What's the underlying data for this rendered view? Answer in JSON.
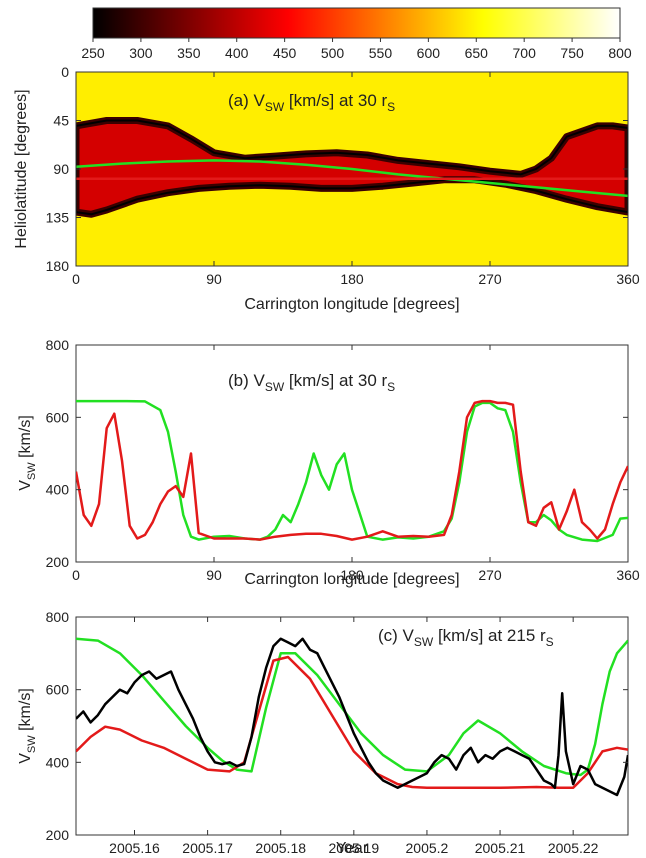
{
  "colorbar": {
    "ticks": [
      "250",
      "300",
      "350",
      "400",
      "450",
      "500",
      "550",
      "600",
      "650",
      "700",
      "750",
      "800"
    ],
    "range": [
      250,
      800
    ],
    "colormap": "hot"
  },
  "colors": {
    "green": "#22e022",
    "red": "#e31a1a",
    "black": "#000000",
    "field_yellow": "#ffee00"
  },
  "chart_data": [
    {
      "type": "heatmap",
      "title_pre": "(a) V",
      "title_sub": "SW",
      "title_mid": " [km/s] at 30 r",
      "title_sub2": "S",
      "xlabel": "Carrington longitude [degrees]",
      "ylabel": "Heliolatitude [degrees]",
      "xlim": [
        0,
        360
      ],
      "ylim": [
        0,
        180
      ],
      "xticks": [
        0,
        90,
        180,
        270,
        360
      ],
      "yticks": [
        0,
        45,
        90,
        135,
        180
      ],
      "y_reversed": true,
      "description_values": {
        "field_speed": 720,
        "slow_band_speed": 260
      },
      "slow_band_upper_edge": {
        "x": [
          0,
          20,
          40,
          60,
          75,
          90,
          110,
          130,
          150,
          170,
          190,
          210,
          230,
          250,
          270,
          290,
          300,
          310,
          320,
          330,
          340,
          350,
          360
        ],
        "y": [
          50,
          45,
          45,
          50,
          62,
          75,
          80,
          78,
          76,
          75,
          77,
          82,
          85,
          88,
          92,
          95,
          90,
          80,
          60,
          55,
          50,
          50,
          52
        ]
      },
      "slow_band_lower_edge": {
        "x": [
          0,
          10,
          20,
          40,
          60,
          80,
          100,
          120,
          140,
          160,
          180,
          200,
          220,
          240,
          260,
          280,
          300,
          320,
          340,
          360
        ],
        "y": [
          130,
          132,
          128,
          118,
          112,
          108,
          106,
          105,
          106,
          108,
          108,
          106,
          103,
          100,
          100,
          104,
          110,
          118,
          125,
          130
        ]
      },
      "lines": [
        {
          "color": "green",
          "x": [
            0,
            30,
            60,
            90,
            120,
            150,
            180,
            210,
            240,
            270,
            300,
            330,
            360
          ],
          "y": [
            88,
            85,
            83,
            82,
            83,
            86,
            90,
            95,
            99,
            103,
            107,
            111,
            115
          ]
        },
        {
          "color": "red",
          "x": [
            0,
            360
          ],
          "y": [
            99,
            99
          ]
        }
      ]
    },
    {
      "type": "line",
      "title_pre": "(b) V",
      "title_sub": "SW",
      "title_mid": " [km/s] at 30 r",
      "title_sub2": "S",
      "xlabel": "Carrington longitude [degrees]",
      "ylabel_pre": "V",
      "ylabel_sub": "SW",
      "ylabel_post": " [km/s]",
      "xlim": [
        0,
        360
      ],
      "ylim": [
        200,
        800
      ],
      "xticks": [
        0,
        90,
        180,
        270,
        360
      ],
      "yticks": [
        200,
        400,
        600,
        800
      ],
      "series": [
        {
          "color": "green",
          "x": [
            0,
            30,
            45,
            55,
            60,
            65,
            70,
            75,
            80,
            90,
            100,
            110,
            120,
            125,
            130,
            135,
            140,
            145,
            150,
            155,
            160,
            165,
            170,
            175,
            180,
            190,
            200,
            210,
            220,
            230,
            240,
            245,
            250,
            255,
            260,
            265,
            270,
            275,
            280,
            285,
            290,
            295,
            300,
            305,
            310,
            315,
            320,
            330,
            340,
            350,
            355,
            360
          ],
          "values": [
            645,
            645,
            644,
            620,
            560,
            450,
            330,
            270,
            262,
            270,
            272,
            265,
            262,
            270,
            290,
            330,
            310,
            360,
            420,
            500,
            440,
            400,
            470,
            500,
            400,
            270,
            262,
            268,
            265,
            270,
            285,
            320,
            420,
            560,
            630,
            640,
            640,
            625,
            620,
            560,
            420,
            310,
            310,
            330,
            315,
            290,
            275,
            262,
            258,
            275,
            320,
            322
          ]
        },
        {
          "color": "red",
          "x": [
            0,
            5,
            10,
            15,
            20,
            25,
            30,
            35,
            40,
            45,
            50,
            55,
            60,
            65,
            70,
            75,
            80,
            90,
            100,
            110,
            120,
            130,
            140,
            150,
            160,
            170,
            180,
            190,
            200,
            210,
            220,
            230,
            240,
            245,
            250,
            255,
            260,
            265,
            270,
            275,
            280,
            285,
            290,
            295,
            300,
            305,
            310,
            315,
            320,
            325,
            330,
            335,
            340,
            345,
            350,
            355,
            360
          ],
          "values": [
            450,
            330,
            300,
            360,
            570,
            610,
            480,
            300,
            265,
            275,
            310,
            360,
            395,
            410,
            380,
            500,
            280,
            265,
            265,
            265,
            262,
            270,
            275,
            278,
            278,
            272,
            262,
            270,
            285,
            270,
            272,
            270,
            275,
            330,
            450,
            600,
            640,
            645,
            645,
            640,
            640,
            635,
            450,
            310,
            300,
            350,
            365,
            290,
            340,
            400,
            310,
            290,
            265,
            290,
            360,
            420,
            465
          ]
        }
      ]
    },
    {
      "type": "line",
      "title_pre": "(c) V",
      "title_sub": "SW",
      "title_mid": " [km/s] at 215 r",
      "title_sub2": "S",
      "xlabel": "Year",
      "ylabel_pre": "V",
      "ylabel_sub": "SW",
      "ylabel_post": " [km/s]",
      "xlim": [
        2005.152,
        2005.2275
      ],
      "ylim": [
        200,
        800
      ],
      "xticks": [
        2005.16,
        2005.17,
        2005.18,
        2005.19,
        2005.2,
        2005.21,
        2005.22
      ],
      "xticklabels": [
        "2005.16",
        "2005.17",
        "2005.18",
        "2005.19",
        "2005.2",
        "2005.21",
        "2005.22"
      ],
      "yticks": [
        200,
        400,
        600,
        800
      ],
      "series": [
        {
          "color": "green",
          "x": [
            2005.152,
            2005.155,
            2005.158,
            2005.161,
            2005.164,
            2005.167,
            2005.17,
            2005.172,
            2005.174,
            2005.176,
            2005.178,
            2005.18,
            2005.182,
            2005.185,
            2005.188,
            2005.191,
            2005.194,
            2005.197,
            2005.2,
            2005.203,
            2005.205,
            2005.207,
            2005.21,
            2005.213,
            2005.216,
            2005.219,
            2005.221,
            2005.222,
            2005.223,
            2005.224,
            2005.225,
            2005.226,
            2005.2275
          ],
          "values": [
            740,
            735,
            700,
            640,
            570,
            500,
            440,
            405,
            380,
            375,
            550,
            700,
            700,
            640,
            560,
            480,
            420,
            380,
            375,
            420,
            480,
            515,
            480,
            430,
            390,
            370,
            365,
            380,
            450,
            560,
            650,
            700,
            735
          ]
        },
        {
          "color": "red",
          "x": [
            2005.152,
            2005.154,
            2005.156,
            2005.158,
            2005.161,
            2005.164,
            2005.167,
            2005.17,
            2005.173,
            2005.175,
            2005.177,
            2005.179,
            2005.181,
            2005.184,
            2005.187,
            2005.19,
            2005.193,
            2005.196,
            2005.198,
            2005.2,
            2005.205,
            2005.21,
            2005.215,
            2005.218,
            2005.22,
            2005.222,
            2005.224,
            2005.226,
            2005.2275
          ],
          "values": [
            430,
            470,
            498,
            490,
            460,
            440,
            410,
            380,
            375,
            400,
            540,
            680,
            690,
            630,
            530,
            430,
            370,
            340,
            332,
            330,
            330,
            330,
            332,
            330,
            330,
            370,
            430,
            440,
            435
          ]
        },
        {
          "color": "black",
          "x": [
            2005.152,
            2005.153,
            2005.154,
            2005.155,
            2005.156,
            2005.157,
            2005.158,
            2005.159,
            2005.16,
            2005.161,
            2005.162,
            2005.163,
            2005.164,
            2005.165,
            2005.166,
            2005.167,
            2005.168,
            2005.169,
            2005.17,
            2005.171,
            2005.172,
            2005.173,
            2005.174,
            2005.175,
            2005.176,
            2005.177,
            2005.178,
            2005.179,
            2005.18,
            2005.181,
            2005.182,
            2005.183,
            2005.184,
            2005.185,
            2005.186,
            2005.187,
            2005.188,
            2005.189,
            2005.19,
            2005.191,
            2005.192,
            2005.193,
            2005.194,
            2005.195,
            2005.196,
            2005.197,
            2005.198,
            2005.199,
            2005.2,
            2005.201,
            2005.202,
            2005.203,
            2005.204,
            2005.205,
            2005.206,
            2005.207,
            2005.208,
            2005.209,
            2005.21,
            2005.211,
            2005.212,
            2005.213,
            2005.214,
            2005.215,
            2005.216,
            2005.217,
            2005.2175,
            2005.218,
            2005.2185,
            2005.219,
            2005.22,
            2005.221,
            2005.222,
            2005.223,
            2005.224,
            2005.225,
            2005.226,
            2005.227,
            2005.2275
          ],
          "values": [
            520,
            540,
            510,
            530,
            560,
            580,
            600,
            590,
            620,
            640,
            650,
            630,
            640,
            650,
            600,
            560,
            520,
            470,
            430,
            400,
            395,
            400,
            390,
            395,
            470,
            580,
            660,
            720,
            740,
            730,
            720,
            740,
            710,
            700,
            660,
            620,
            580,
            530,
            480,
            440,
            400,
            370,
            350,
            340,
            330,
            340,
            350,
            360,
            370,
            400,
            420,
            410,
            380,
            420,
            440,
            400,
            420,
            410,
            430,
            440,
            430,
            420,
            410,
            380,
            350,
            340,
            330,
            420,
            590,
            430,
            340,
            390,
            380,
            340,
            330,
            320,
            310,
            360,
            420
          ]
        }
      ]
    }
  ]
}
